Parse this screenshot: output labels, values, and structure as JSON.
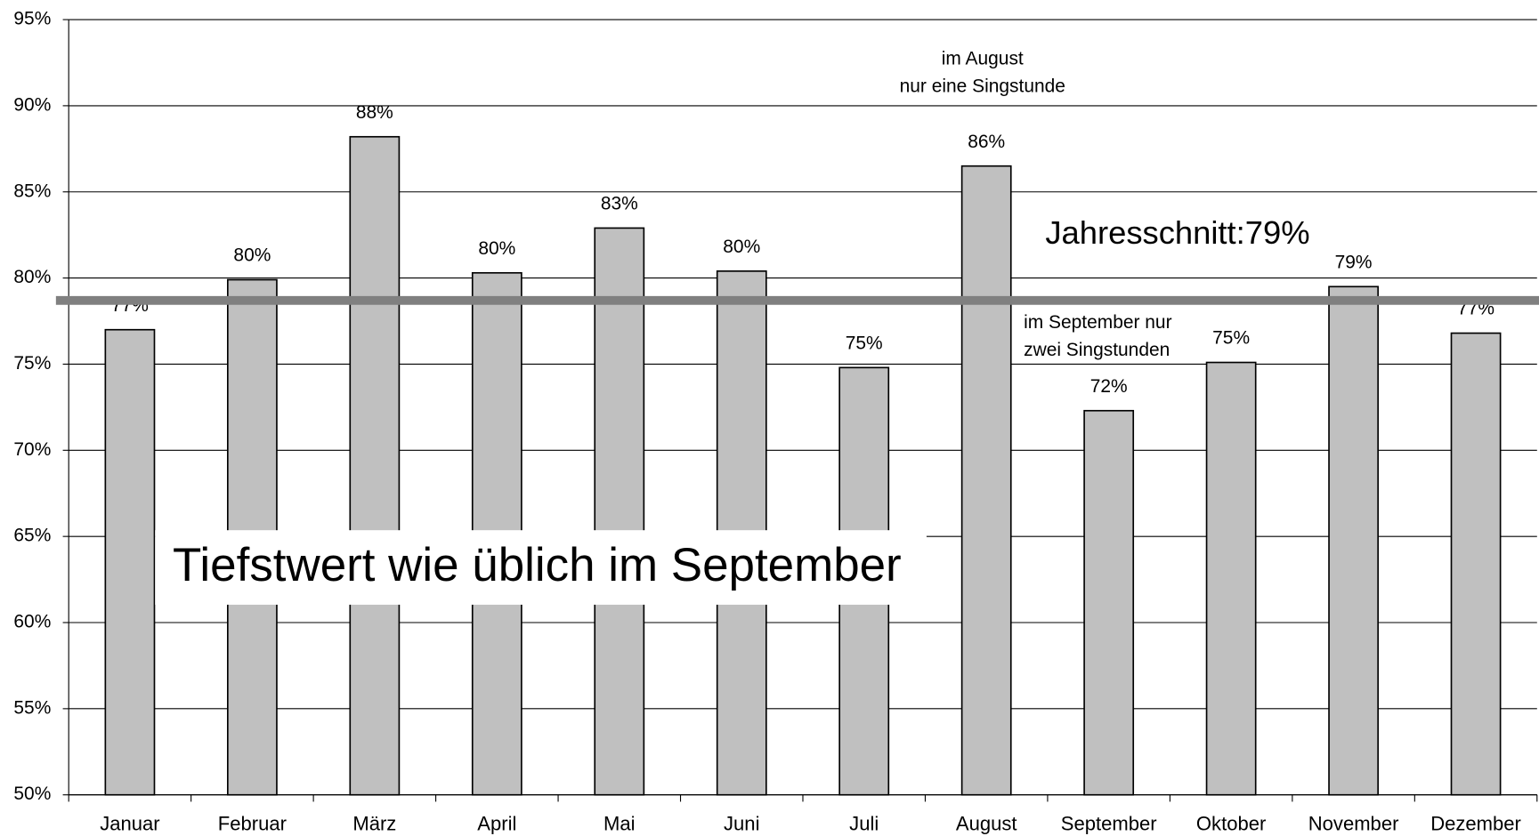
{
  "chart_data": {
    "type": "bar",
    "categories": [
      "Januar",
      "Februar",
      "März",
      "April",
      "Mai",
      "Juni",
      "Juli",
      "August",
      "September",
      "Oktober",
      "November",
      "Dezember"
    ],
    "values": [
      77.0,
      79.9,
      88.2,
      80.3,
      82.9,
      80.4,
      74.8,
      86.5,
      72.3,
      75.1,
      79.5,
      76.8
    ],
    "value_labels": [
      "77%",
      "80%",
      "88%",
      "80%",
      "83%",
      "80%",
      "75%",
      "86%",
      "72%",
      "75%",
      "79%",
      "77%"
    ],
    "color": "#c0c0c0",
    "ylim": [
      50,
      95
    ],
    "yticks": [
      {
        "value": 50,
        "label": "50%"
      },
      {
        "value": 55,
        "label": "55%"
      },
      {
        "value": 60,
        "label": "60%"
      },
      {
        "value": 65,
        "label": "65%"
      },
      {
        "value": 70,
        "label": "70%"
      },
      {
        "value": 75,
        "label": "75%"
      },
      {
        "value": 80,
        "label": "80%"
      },
      {
        "value": 85,
        "label": "85%"
      },
      {
        "value": 90,
        "label": "90%"
      },
      {
        "value": 95,
        "label": "95%"
      }
    ],
    "grid": true,
    "average": {
      "value": 78.7,
      "label": "Jahresschnitt:79%",
      "color": "#808080"
    },
    "annotations": [
      [
        "im August",
        "nur eine Singstunde"
      ],
      [
        "im September nur",
        "zwei Singstunden"
      ]
    ],
    "headline": "Tiefstwert wie üblich im September"
  }
}
